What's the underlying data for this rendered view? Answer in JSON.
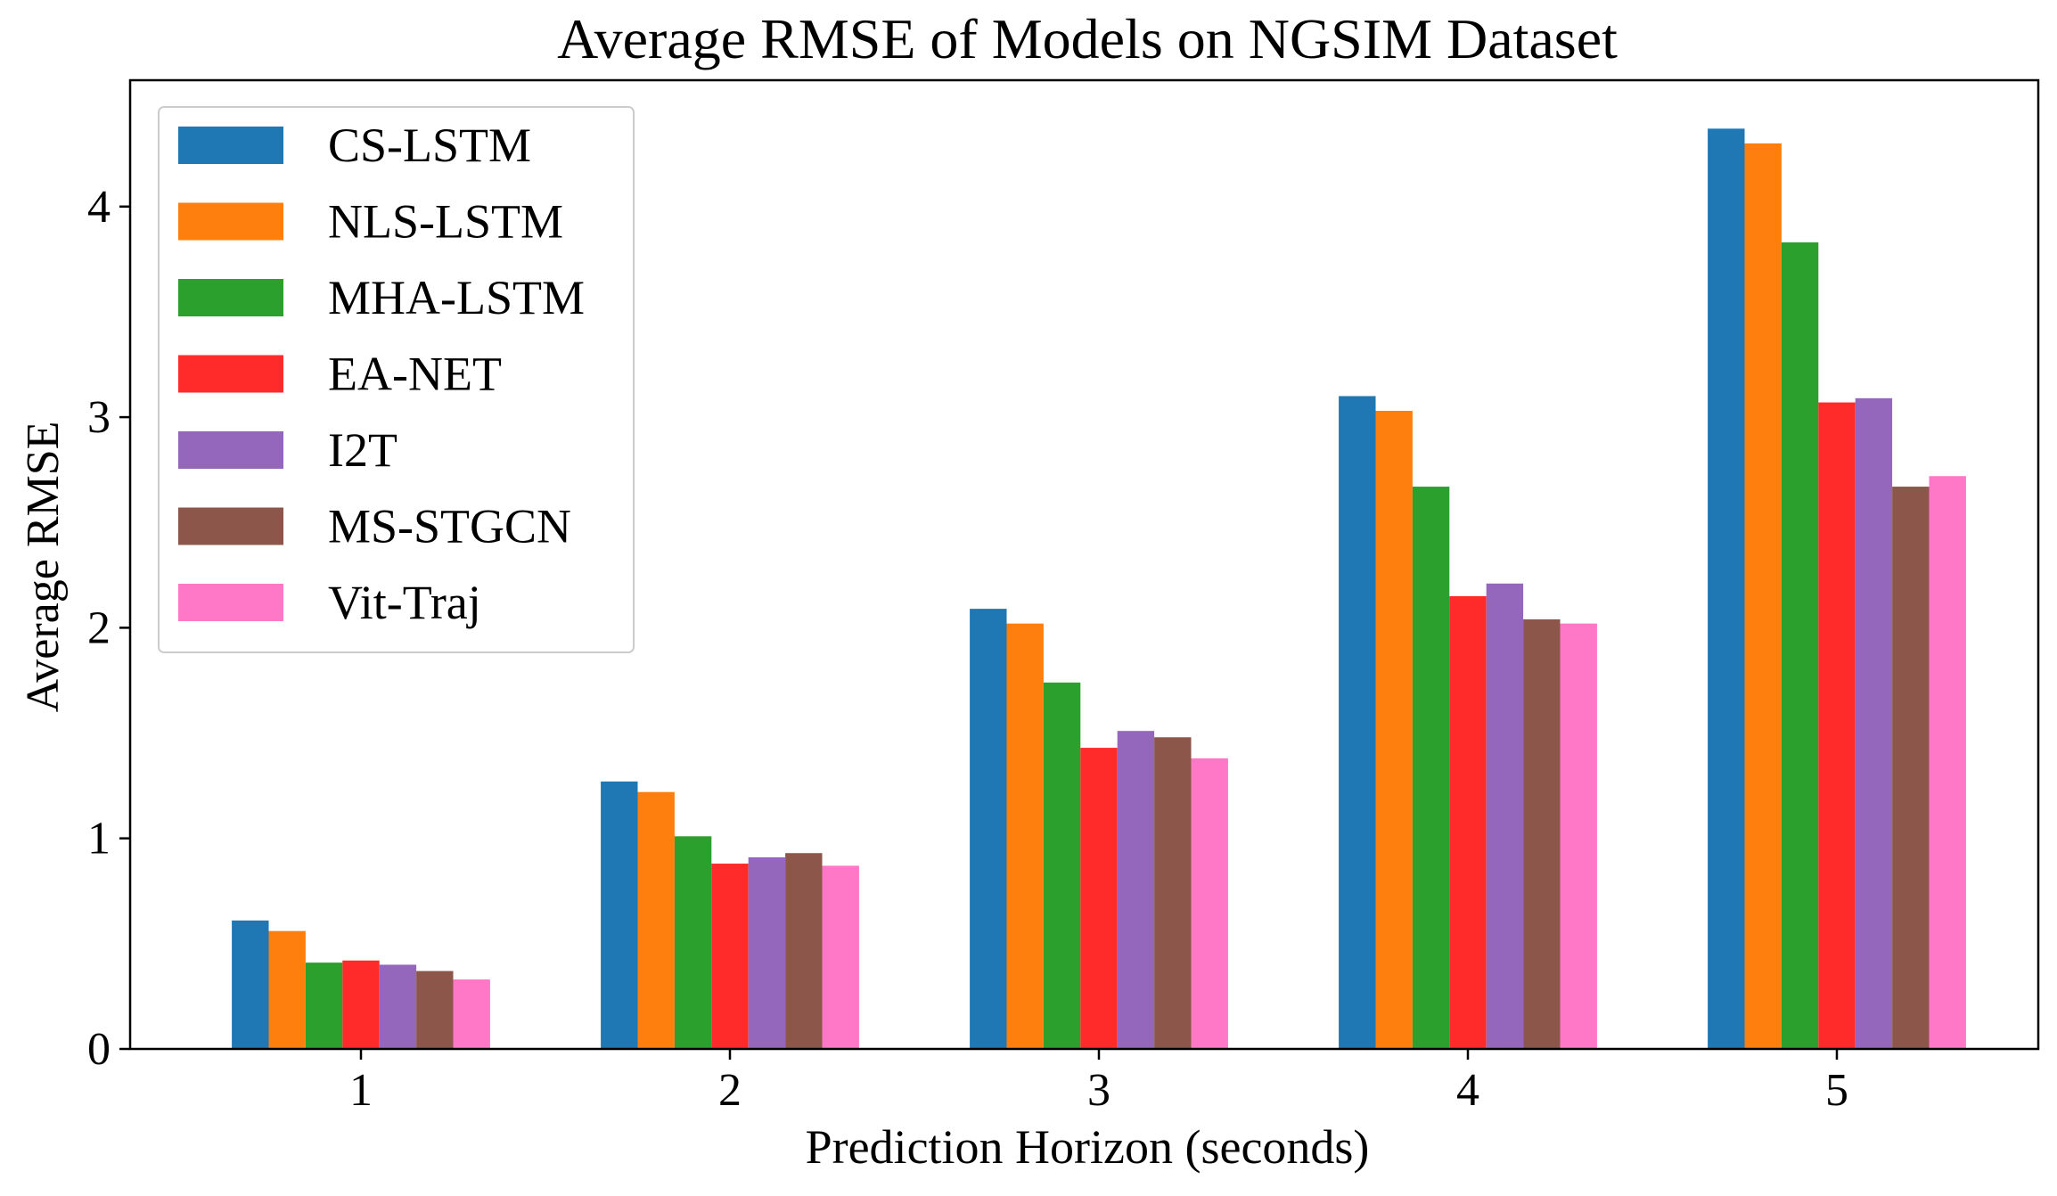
{
  "chart_data": {
    "type": "bar",
    "title": "Average RMSE of Models on NGSIM Dataset",
    "xlabel": "Prediction Horizon (seconds)",
    "ylabel": "Average RMSE",
    "categories": [
      "1",
      "2",
      "3",
      "4",
      "5"
    ],
    "ylim": [
      0,
      4.6
    ],
    "yticks": [
      "0",
      "1",
      "2",
      "3",
      "4"
    ],
    "grid": false,
    "legend_position": "top-left",
    "series": [
      {
        "name": "CS-LSTM",
        "color": "#1f77b4",
        "values": [
          0.61,
          1.27,
          2.09,
          3.1,
          4.37
        ]
      },
      {
        "name": "NLS-LSTM",
        "color": "#ff7f0e",
        "values": [
          0.56,
          1.22,
          2.02,
          3.03,
          4.3
        ]
      },
      {
        "name": "MHA-LSTM",
        "color": "#2ca02c",
        "values": [
          0.41,
          1.01,
          1.74,
          2.67,
          3.83
        ]
      },
      {
        "name": "EA-NET",
        "color": "#ff2a2a",
        "values": [
          0.42,
          0.88,
          1.43,
          2.15,
          3.07
        ]
      },
      {
        "name": "I2T",
        "color": "#9467bd",
        "values": [
          0.4,
          0.91,
          1.51,
          2.21,
          3.09
        ]
      },
      {
        "name": "MS-STGCN",
        "color": "#8c564b",
        "values": [
          0.37,
          0.93,
          1.48,
          2.04,
          2.67
        ]
      },
      {
        "name": "Vit-Traj",
        "color": "#ff77c7",
        "values": [
          0.33,
          0.87,
          1.38,
          2.02,
          2.72
        ]
      }
    ]
  }
}
